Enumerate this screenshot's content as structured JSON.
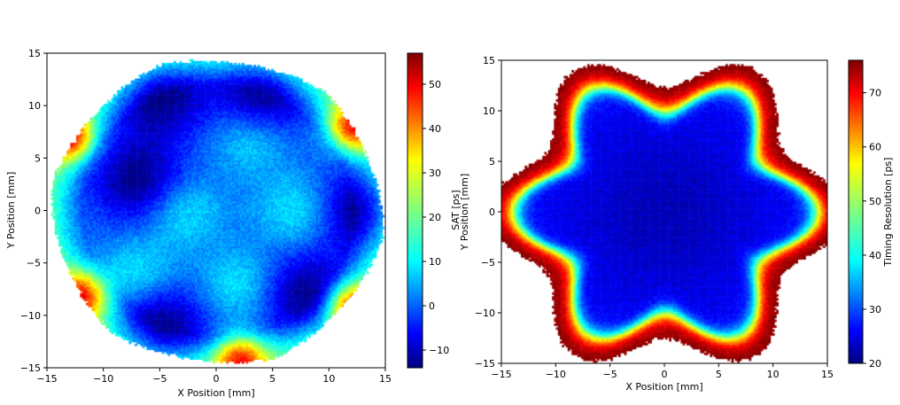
{
  "chart_data": [
    {
      "type": "heatmap",
      "title": "",
      "xlabel": "X Position [mm]",
      "ylabel": "Y Position [mm]",
      "xlim": [
        -15,
        15
      ],
      "ylim": [
        -15,
        15
      ],
      "xticks": [
        -15,
        -10,
        -5,
        0,
        5,
        10,
        15
      ],
      "yticks": [
        -15,
        -10,
        -5,
        0,
        5,
        10,
        15
      ],
      "colormap": "jet",
      "colorbar": {
        "label": "SAT [ps]",
        "range": [
          -14,
          57
        ],
        "ticks": [
          -10,
          0,
          10,
          20,
          30,
          40,
          50
        ]
      },
      "features": {
        "outline_radius_mm": 15,
        "lobes": 6,
        "low_regions_centers_mm": [
          [
            -5,
            11
          ],
          [
            4,
            11
          ],
          [
            -7,
            3
          ],
          [
            13,
            0
          ],
          [
            8,
            -8
          ],
          [
            -5,
            -11
          ]
        ],
        "high_regions_centers_mm": [
          [
            -13,
            7
          ],
          [
            12,
            8
          ],
          [
            -12,
            -8
          ],
          [
            12,
            -9
          ],
          [
            2,
            -14
          ]
        ],
        "mid_regions_centers_mm": [
          [
            3,
            7
          ],
          [
            -3,
            0
          ],
          [
            7,
            0
          ],
          [
            -7,
            -6
          ],
          [
            2,
            -7
          ]
        ]
      }
    },
    {
      "type": "heatmap",
      "title": "",
      "xlabel": "X Position [mm]",
      "ylabel": "Y Position [mm]",
      "xlim": [
        -15,
        15
      ],
      "ylim": [
        -15,
        15
      ],
      "xticks": [
        -15,
        -10,
        -5,
        0,
        5,
        10,
        15
      ],
      "yticks": [
        -15,
        -10,
        -5,
        0,
        5,
        10,
        15
      ],
      "colormap": "jet",
      "colorbar": {
        "label": "Timing Resolution [ps]",
        "range": [
          20,
          76
        ],
        "ticks": [
          20,
          30,
          40,
          50,
          60,
          70
        ]
      },
      "features": {
        "flower_petals": 6,
        "flower_base_radius_mm": 11,
        "flower_petal_amplitude_mm": 2,
        "interior_value_ps": 27,
        "edge_value_ps": 76
      }
    }
  ]
}
